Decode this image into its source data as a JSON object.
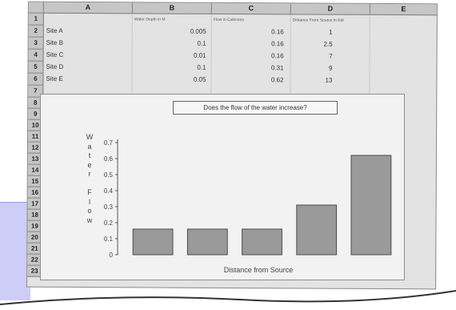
{
  "spreadsheet": {
    "columns": [
      "A",
      "B",
      "C",
      "D",
      "E"
    ],
    "rows": [
      "1",
      "2",
      "3",
      "4",
      "5",
      "6",
      "7",
      "8",
      "9",
      "10",
      "11",
      "12",
      "13",
      "14",
      "15",
      "16",
      "17",
      "18",
      "19",
      "20",
      "21",
      "22",
      "23"
    ],
    "header_row": {
      "b": "Water Depth in M",
      "c": "Flow in Cubicm/s",
      "d": "Distance From Source in KM"
    },
    "data_rows": [
      {
        "site": "Site A",
        "depth": "0.005",
        "flow": "0.16",
        "distance": "1"
      },
      {
        "site": "Site B",
        "depth": "0.1",
        "flow": "0.16",
        "distance": "2.5"
      },
      {
        "site": "Site C",
        "depth": "0.01",
        "flow": "0.16",
        "distance": "7"
      },
      {
        "site": "Site D",
        "depth": "0.1",
        "flow": "0.31",
        "distance": "9"
      },
      {
        "site": "Site E",
        "depth": "0.05",
        "flow": "0.62",
        "distance": "13"
      }
    ]
  },
  "chart_data": {
    "type": "bar",
    "title": "Does the flow of the water increase?",
    "xlabel": "Distance from Source",
    "ylabel": "Water Flow",
    "ylim": [
      0,
      0.7
    ],
    "yticks": [
      "0",
      "0.1",
      "0.2",
      "0.3",
      "0.4",
      "0.5",
      "0.6",
      "0.7"
    ],
    "values": [
      0.16,
      0.16,
      0.16,
      0.31,
      0.62
    ],
    "bar_color": "#9a9a9a"
  }
}
